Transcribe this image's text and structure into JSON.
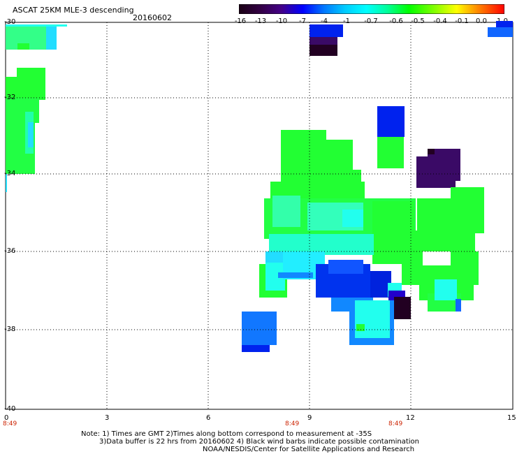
{
  "title": "ASCAT 25KM MLE-3 descending",
  "date": "20160602",
  "colorbar": {
    "ticks": [
      "-16",
      "-13",
      "-10",
      "-7",
      "-4",
      "-1",
      "-0.7",
      "-0.6",
      "-0.5",
      "-0.4",
      "-0.1",
      "0.0",
      "1.0"
    ]
  },
  "axes": {
    "lat_labels": [
      "-30",
      "-32",
      "-34",
      "-36",
      "-38",
      "-40"
    ],
    "lon_labels": [
      "0",
      "3",
      "6",
      "9",
      "12",
      "15"
    ],
    "time_labels": [
      "8:49",
      "8:49",
      "8:49"
    ]
  },
  "notes": {
    "line1": "Note: 1) Times are GMT 2)Times along bottom correspond to measurement at -35S",
    "line2": "3)Data buffer is 22 hrs from 20160602 4) Black wind barbs indicate possible contamination",
    "line3": "NOAA/NESDIS/Center for Satellite Applications and Research"
  },
  "colors": {
    "green": "#22ff33",
    "cyan": "#22ffee",
    "blue": "#0022ee",
    "navy": "#2200cc",
    "purple": "#3a0a66",
    "dark": "#220022",
    "lightblue": "#1188ff"
  }
}
